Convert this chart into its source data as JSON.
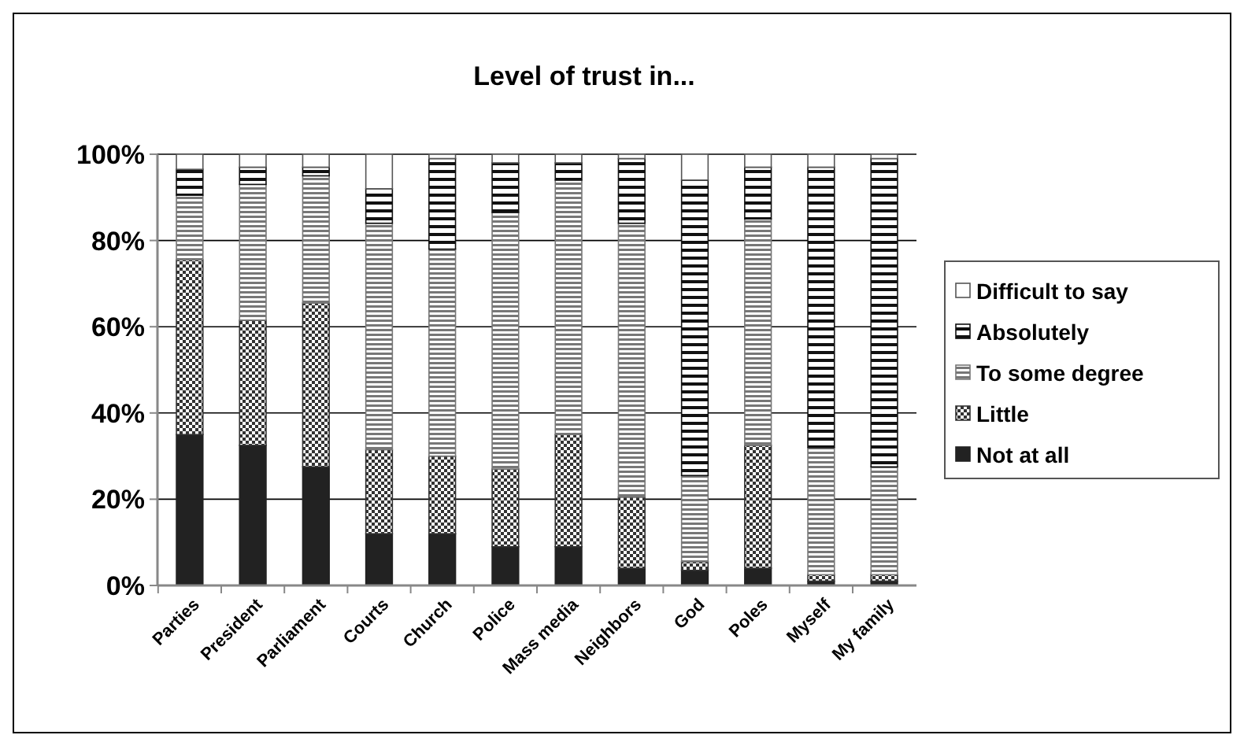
{
  "chart_data": {
    "type": "bar",
    "title": "Level of trust in...",
    "stacked": true,
    "categories": [
      "Parties",
      "President",
      "Parliament",
      "Courts",
      "Church",
      "Police",
      "Mass media",
      "Neighbors",
      "God",
      "Poles",
      "Myself",
      "My family"
    ],
    "series": [
      {
        "name": "Not at all",
        "color": "#222222",
        "values": [
          35,
          32.5,
          27.5,
          12,
          12,
          9,
          9,
          4,
          3.5,
          4,
          1,
          1
        ]
      },
      {
        "name": "Little",
        "color": "#333333",
        "values": [
          40.5,
          29,
          38,
          19.5,
          18,
          18,
          26,
          16.5,
          2,
          28.5,
          1.5,
          1.5
        ]
      },
      {
        "name": "To some degree",
        "color": "#777777",
        "values": [
          15,
          31.5,
          29.5,
          52.5,
          48,
          59.5,
          59,
          63.5,
          20,
          52.5,
          29.5,
          25
        ]
      },
      {
        "name": "Absolutely",
        "color": "#111111",
        "values": [
          6,
          4,
          2,
          8,
          21,
          11.5,
          4,
          15,
          68.5,
          12,
          65,
          71.5
        ]
      },
      {
        "name": "Difficult to say",
        "color": "#ffffff",
        "values": [
          3.5,
          3,
          3,
          8,
          1,
          2,
          2,
          1,
          6,
          3,
          3,
          1
        ]
      }
    ],
    "ylim": [
      0,
      100
    ],
    "yticks": [
      {
        "value": 0,
        "label": "0%"
      },
      {
        "value": 20,
        "label": "20%"
      },
      {
        "value": 40,
        "label": "40%"
      },
      {
        "value": 60,
        "label": "60%"
      },
      {
        "value": 80,
        "label": "80%"
      },
      {
        "value": 100,
        "label": "100%"
      }
    ],
    "grid": "y",
    "legend": "right"
  }
}
